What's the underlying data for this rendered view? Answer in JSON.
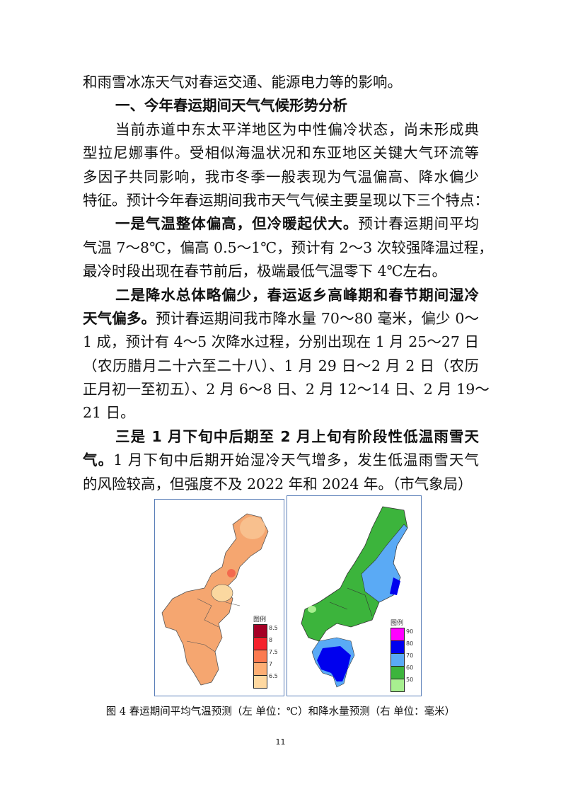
{
  "body": {
    "lines": [
      {
        "indent": false,
        "last": true,
        "segs": [
          {
            "t": "和雨雪冰冻天气对春运交通、能源电力等的影响。"
          }
        ]
      },
      {
        "indent": true,
        "last": true,
        "heading": true,
        "segs": [
          {
            "t": "一、今年春运期间天气气候形势分析"
          }
        ]
      },
      {
        "indent": true,
        "segs": [
          {
            "t": "当前赤道中东太平洋地区为中性偏冷状态，尚未形成典"
          }
        ]
      },
      {
        "segs": [
          {
            "t": "型拉尼娜事件。受相似海温状况和东亚地区关键大气环流等"
          }
        ]
      },
      {
        "segs": [
          {
            "t": "多因子共同影响，我市冬季一般表现为气温偏高、降水偏少"
          }
        ]
      },
      {
        "last": true,
        "segs": [
          {
            "t": "特征。预计今年春运期间我市天气气候主要呈现以下三个特点："
          }
        ]
      },
      {
        "indent": true,
        "segs": [
          {
            "b": true,
            "t": "一是气温整体偏高，但冷暖起伏大。"
          },
          {
            "t": "预计春运期间平均"
          }
        ]
      },
      {
        "segs": [
          {
            "t": "气温 7～8℃，偏高 0.5～1℃，预计有 2～3 次较强降温过程，"
          }
        ]
      },
      {
        "last": true,
        "segs": [
          {
            "t": "最冷时段出现在春节前后，极端最低气温零下 4℃左右。"
          }
        ]
      },
      {
        "indent": true,
        "segs": [
          {
            "b": true,
            "t": "二是降水总体略偏少，春运返乡高峰期和春节期间湿冷"
          }
        ]
      },
      {
        "segs": [
          {
            "b": true,
            "t": "天气偏多。"
          },
          {
            "t": "预计春运期间我市降水量 70～80 毫米，偏少 0～"
          }
        ]
      },
      {
        "segs": [
          {
            "t": "1 成，预计有 4～5 次降水过程，分别出现在 1 月 25～27 日"
          }
        ]
      },
      {
        "segs": [
          {
            "t": "（农历腊月二十六至二十八）、1 月 29 日～2 月 2 日（农历"
          }
        ]
      },
      {
        "segs": [
          {
            "t": "正月初一至初五）、2 月 6～8 日、2 月 12～14 日、2 月 19～"
          }
        ]
      },
      {
        "last": true,
        "segs": [
          {
            "t": "21 日。"
          }
        ]
      },
      {
        "indent": true,
        "segs": [
          {
            "b": true,
            "t": "三是 1 月下旬中后期至 2 月上旬有阶段性低温雨雪天"
          }
        ]
      },
      {
        "segs": [
          {
            "b": true,
            "t": "气。"
          },
          {
            "t": "1 月下旬中后期开始湿冷天气增多，发生低温雨雪天气"
          }
        ]
      },
      {
        "last": true,
        "segs": [
          {
            "t": "的风险较高，但强度不及 2022 年和 2024 年。（市气象局）"
          }
        ]
      }
    ]
  },
  "figure": {
    "left_legend": {
      "title": "图例",
      "colors": [
        "#a50026",
        "#f5222d",
        "#fb7a50",
        "#fdae74",
        "#fed8a0"
      ],
      "labels": [
        "8.5",
        "8",
        "7.5",
        "7",
        "6.5"
      ]
    },
    "right_legend": {
      "title": "图例",
      "colors": [
        "#ff00ff",
        "#0000ee",
        "#5aaaf5",
        "#3cb43c",
        "#a8f090"
      ],
      "labels": [
        "90",
        "80",
        "70",
        "60",
        "50"
      ]
    },
    "caption": "图 4 春运期间平均气温预测（左  单位：℃）和降水量预测（右  单位：毫米）"
  },
  "page_number": "11"
}
